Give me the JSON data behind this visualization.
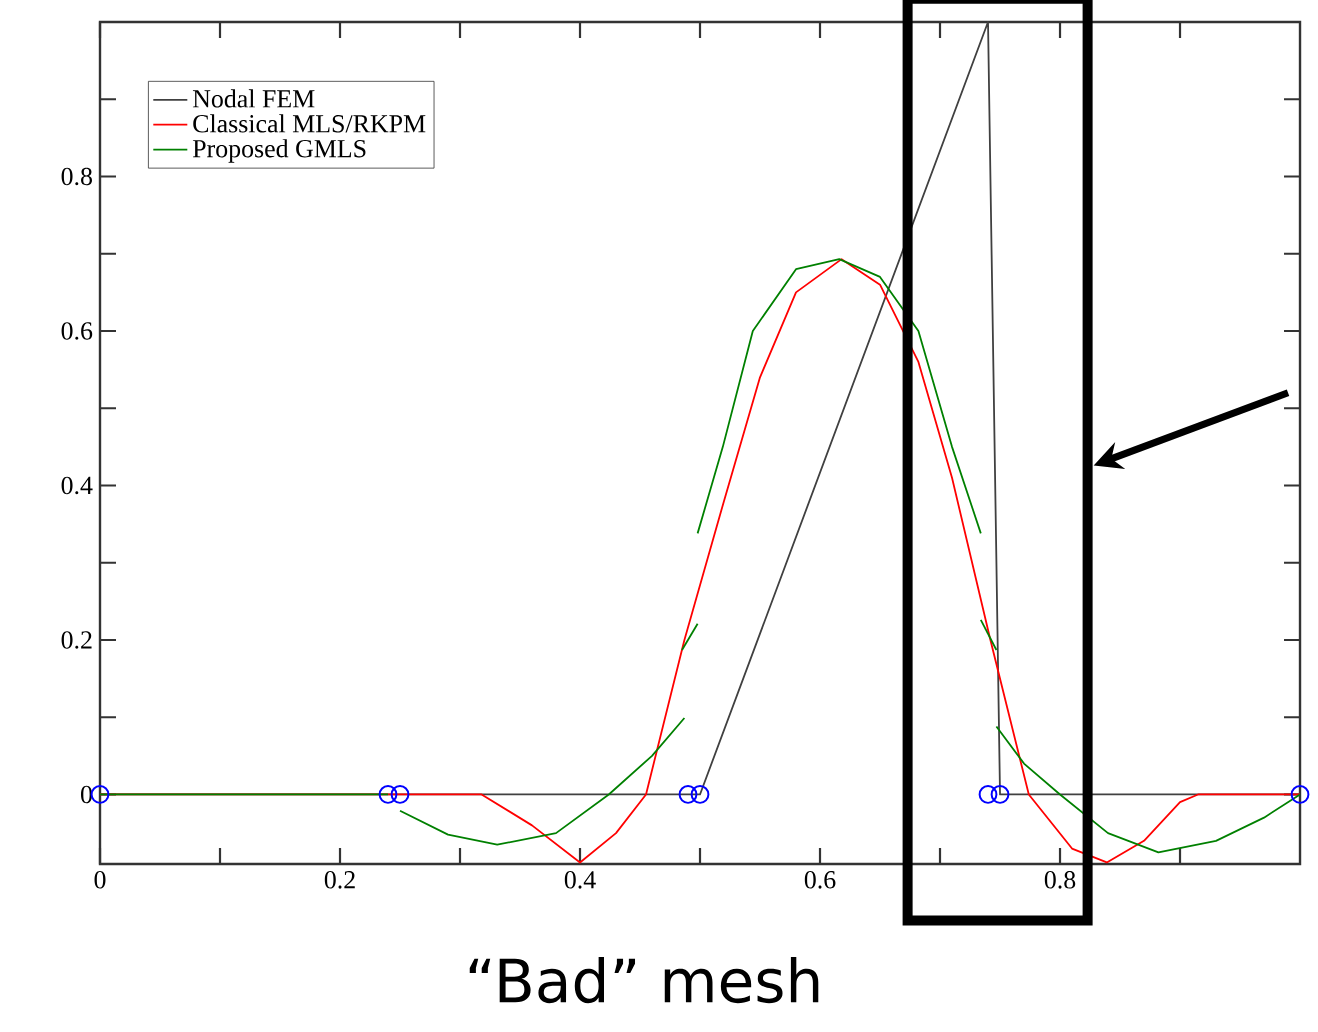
{
  "chart_data": {
    "type": "line",
    "annotations": [
      "“Bad” mesh"
    ],
    "xlim": [
      0,
      1
    ],
    "ylim": [
      -0.09,
      1.0
    ],
    "xticks": [
      0,
      {
        "value": 0.1,
        "label": null
      },
      0.2,
      {
        "value": 0.3,
        "label": null
      },
      0.4,
      {
        "value": 0.5,
        "label": null
      },
      0.6,
      {
        "value": 0.7,
        "label": null
      },
      0.8,
      {
        "value": 0.9,
        "label": null
      }
    ],
    "yticks": [
      0,
      {
        "value": 0.1,
        "label": null
      },
      0.2,
      {
        "value": 0.3,
        "label": null
      },
      0.4,
      {
        "value": 0.5,
        "label": null
      },
      0.6,
      {
        "value": 0.7,
        "label": null
      },
      0.8,
      {
        "value": 0.9,
        "label": null
      }
    ],
    "legend": "top left",
    "series": [
      {
        "name": "Nodal FEM",
        "color": "#404040",
        "x": [
          0,
          0.24,
          0.25,
          0.49,
          0.5,
          0.74,
          0.75,
          1.0
        ],
        "values": [
          0,
          0,
          0,
          0,
          0,
          1.0,
          0,
          0
        ]
      },
      {
        "name": "Classical MLS/RKPM",
        "color": "#ff0000",
        "x": [
          0,
          0.318,
          0.36,
          0.4,
          0.43,
          0.455,
          0.487,
          0.52,
          0.55,
          0.58,
          0.618,
          0.65,
          0.682,
          0.71,
          0.742,
          0.774,
          0.81,
          0.839,
          0.87,
          0.9,
          0.915,
          1.0
        ],
        "values": [
          0,
          0,
          -0.04,
          -0.088,
          -0.05,
          0,
          0.2,
          0.38,
          0.54,
          0.65,
          0.693,
          0.66,
          0.56,
          0.41,
          0.2,
          0,
          -0.07,
          -0.088,
          -0.06,
          -0.01,
          0,
          0
        ]
      },
      {
        "name": "Proposed GMLS",
        "color": "#008000",
        "x": [
          0,
          0.24
        ],
        "values": [
          0,
          0
        ]
      },
      {
        "color": "#008000",
        "x": [
          0.25,
          0.29,
          0.331,
          0.38,
          0.424,
          0.46,
          0.487
        ],
        "values": [
          -0.021,
          -0.052,
          -0.065,
          -0.05,
          0,
          0.05,
          0.099
        ]
      },
      {
        "color": "#008000",
        "x": [
          0.485,
          0.498
        ],
        "values": [
          0.187,
          0.221
        ]
      },
      {
        "color": "#008000",
        "x": [
          0.498,
          0.519,
          0.544,
          0.58,
          0.616,
          0.65,
          0.682,
          0.71,
          0.734
        ],
        "values": [
          0.338,
          0.45,
          0.6,
          0.68,
          0.693,
          0.67,
          0.6,
          0.45,
          0.338
        ]
      },
      {
        "color": "#008000",
        "x": [
          0.734,
          0.747
        ],
        "values": [
          0.226,
          0.187
        ]
      },
      {
        "color": "#008000",
        "x": [
          0.747,
          0.77,
          0.8,
          0.84,
          0.882,
          0.93,
          0.97,
          1.0
        ],
        "values": [
          0.088,
          0.04,
          0,
          -0.05,
          -0.075,
          -0.06,
          -0.03,
          0
        ]
      },
      {
        "type": "scatter",
        "marker": "circle",
        "color": "#0000ff",
        "x": [
          0,
          0.24,
          0.25,
          0.49,
          0.5,
          0.74,
          0.75,
          1.0
        ],
        "values": [
          0,
          0,
          0,
          0,
          0,
          0,
          0,
          0
        ]
      }
    ]
  }
}
